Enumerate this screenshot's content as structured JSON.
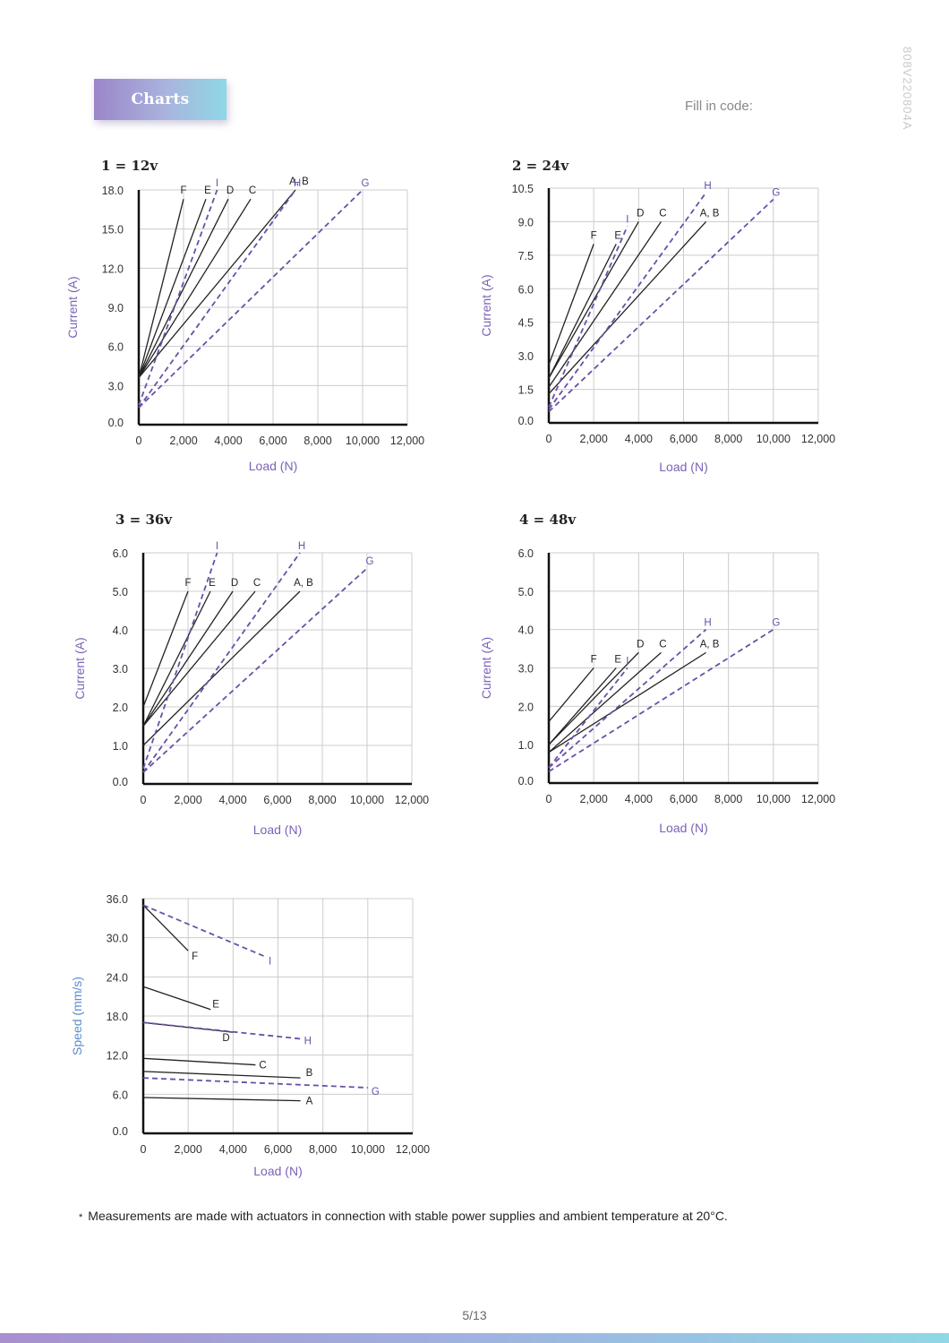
{
  "header": {
    "badge_label": "Charts",
    "fill_in_code_label": "Fill in code:",
    "document_code": "808V220804A"
  },
  "footer": {
    "footnote": "Measurements are made with actuators in connection with stable power supplies and ambient temperature at 20°C.",
    "footnote_marker": "*",
    "page_number": "5/13"
  },
  "colors": {
    "solid_line": "#222222",
    "dashed_line": "#6b4fa8",
    "axis_label": "#7b62b8",
    "speed_axis_label": "#5b8bd0",
    "grid": "#cccccc"
  },
  "chart_data": [
    {
      "type": "line",
      "title": "1 = 12v",
      "xlabel": "Load (N)",
      "ylabel": "Current (A)",
      "xlim": [
        0,
        12000
      ],
      "ylim": [
        0,
        18
      ],
      "x_ticks": [
        "0",
        "2,000",
        "4,000",
        "6,000",
        "8,000",
        "10,000",
        "12,000"
      ],
      "y_ticks": [
        "0.0",
        "3.0",
        "6.0",
        "9.0",
        "12.0",
        "15.0",
        "18.0"
      ],
      "series": [
        {
          "name": "F",
          "style": "solid",
          "x": [
            0,
            2000
          ],
          "y": [
            3.6,
            17.3
          ]
        },
        {
          "name": "E",
          "style": "solid",
          "x": [
            0,
            3000
          ],
          "y": [
            3.6,
            17.3
          ]
        },
        {
          "name": "D",
          "style": "solid",
          "x": [
            0,
            4000
          ],
          "y": [
            3.6,
            17.3
          ]
        },
        {
          "name": "C",
          "style": "solid",
          "x": [
            0,
            5000
          ],
          "y": [
            3.6,
            17.3
          ]
        },
        {
          "name": "A, B",
          "style": "solid",
          "x": [
            0,
            7000
          ],
          "y": [
            3.6,
            18
          ]
        },
        {
          "name": "I",
          "style": "dashed",
          "x": [
            0,
            3500
          ],
          "y": [
            1.5,
            18
          ]
        },
        {
          "name": "H",
          "style": "dashed",
          "x": [
            0,
            7000
          ],
          "y": [
            1.3,
            18
          ]
        },
        {
          "name": "G",
          "style": "dashed",
          "x": [
            0,
            10000
          ],
          "y": [
            1.3,
            18
          ]
        }
      ]
    },
    {
      "type": "line",
      "title": "2 = 24v",
      "xlabel": "Load (N)",
      "ylabel": "Current (A)",
      "xlim": [
        0,
        12000
      ],
      "ylim": [
        0,
        10.5
      ],
      "x_ticks": [
        "0",
        "2,000",
        "4,000",
        "6,000",
        "8,000",
        "10,000",
        "12,000"
      ],
      "y_ticks": [
        "0.0",
        "1.5",
        "3.0",
        "4.5",
        "6.0",
        "7.5",
        "9.0",
        "10.5"
      ],
      "series": [
        {
          "name": "F",
          "style": "solid",
          "x": [
            0,
            2000
          ],
          "y": [
            2.6,
            8
          ]
        },
        {
          "name": "E",
          "style": "solid",
          "x": [
            0,
            3000
          ],
          "y": [
            2.0,
            8
          ]
        },
        {
          "name": "D",
          "style": "solid",
          "x": [
            0,
            4000
          ],
          "y": [
            2.0,
            9
          ]
        },
        {
          "name": "C",
          "style": "solid",
          "x": [
            0,
            5000
          ],
          "y": [
            1.6,
            9
          ]
        },
        {
          "name": "A, B",
          "style": "solid",
          "x": [
            0,
            7000
          ],
          "y": [
            1.3,
            9
          ]
        },
        {
          "name": "I",
          "style": "dashed",
          "x": [
            0,
            3500
          ],
          "y": [
            0.7,
            8.8
          ]
        },
        {
          "name": "H",
          "style": "dashed",
          "x": [
            0,
            7000
          ],
          "y": [
            0.6,
            10.3
          ]
        },
        {
          "name": "G",
          "style": "dashed",
          "x": [
            0,
            10000
          ],
          "y": [
            0.5,
            10
          ]
        }
      ]
    },
    {
      "type": "line",
      "title": "3 = 36v",
      "xlabel": "Load (N)",
      "ylabel": "Current (A)",
      "xlim": [
        0,
        12000
      ],
      "ylim": [
        0,
        6
      ],
      "x_ticks": [
        "0",
        "2,000",
        "4,000",
        "6,000",
        "8,000",
        "10,000",
        "12,000"
      ],
      "y_ticks": [
        "0.0",
        "1.0",
        "2.0",
        "3.0",
        "4.0",
        "5.0",
        "6.0"
      ],
      "series": [
        {
          "name": "F",
          "style": "solid",
          "x": [
            0,
            2000
          ],
          "y": [
            2.0,
            5.0
          ]
        },
        {
          "name": "E",
          "style": "solid",
          "x": [
            0,
            3000
          ],
          "y": [
            1.5,
            5.0
          ]
        },
        {
          "name": "D",
          "style": "solid",
          "x": [
            0,
            4000
          ],
          "y": [
            1.5,
            5.0
          ]
        },
        {
          "name": "C",
          "style": "solid",
          "x": [
            0,
            5000
          ],
          "y": [
            1.5,
            5.0
          ]
        },
        {
          "name": "A, B",
          "style": "solid",
          "x": [
            0,
            7000
          ],
          "y": [
            1.0,
            5.0
          ]
        },
        {
          "name": "I",
          "style": "dashed",
          "x": [
            0,
            3300
          ],
          "y": [
            0.4,
            6.0
          ]
        },
        {
          "name": "H",
          "style": "dashed",
          "x": [
            0,
            7000
          ],
          "y": [
            0.3,
            6.0
          ]
        },
        {
          "name": "G",
          "style": "dashed",
          "x": [
            0,
            10000
          ],
          "y": [
            0.3,
            5.6
          ]
        }
      ]
    },
    {
      "type": "line",
      "title": "4 = 48v",
      "xlabel": "Load (N)",
      "ylabel": "Current (A)",
      "xlim": [
        0,
        12000
      ],
      "ylim": [
        0,
        6
      ],
      "x_ticks": [
        "0",
        "2,000",
        "4,000",
        "6,000",
        "8,000",
        "10,000",
        "12,000"
      ],
      "y_ticks": [
        "0.0",
        "1.0",
        "2.0",
        "3.0",
        "4.0",
        "5.0",
        "6.0"
      ],
      "series": [
        {
          "name": "F",
          "style": "solid",
          "x": [
            0,
            2000
          ],
          "y": [
            1.6,
            3.0
          ]
        },
        {
          "name": "E",
          "style": "solid",
          "x": [
            0,
            3000
          ],
          "y": [
            1.0,
            3.0
          ]
        },
        {
          "name": "D",
          "style": "solid",
          "x": [
            0,
            4000
          ],
          "y": [
            1.0,
            3.4
          ]
        },
        {
          "name": "C",
          "style": "solid",
          "x": [
            0,
            5000
          ],
          "y": [
            0.8,
            3.4
          ]
        },
        {
          "name": "A, B",
          "style": "solid",
          "x": [
            0,
            7000
          ],
          "y": [
            0.8,
            3.4
          ]
        },
        {
          "name": "I",
          "style": "dashed",
          "x": [
            0,
            3500
          ],
          "y": [
            0.4,
            3.0
          ]
        },
        {
          "name": "H",
          "style": "dashed",
          "x": [
            0,
            7000
          ],
          "y": [
            0.4,
            4.0
          ]
        },
        {
          "name": "G",
          "style": "dashed",
          "x": [
            0,
            10000
          ],
          "y": [
            0.3,
            4.0
          ]
        }
      ]
    },
    {
      "type": "line",
      "title": "",
      "xlabel": "Load (N)",
      "ylabel": "Speed (mm/s)",
      "xlim": [
        0,
        12000
      ],
      "ylim": [
        0,
        36
      ],
      "x_ticks": [
        "0",
        "2,000",
        "4,000",
        "6,000",
        "8,000",
        "10,000",
        "12,000"
      ],
      "y_ticks": [
        "0.0",
        "6.0",
        "12.0",
        "18.0",
        "24.0",
        "30.0",
        "36.0"
      ],
      "series": [
        {
          "name": "F",
          "style": "solid",
          "x": [
            0,
            2000
          ],
          "y": [
            35,
            28
          ]
        },
        {
          "name": "E",
          "style": "solid",
          "x": [
            0,
            3000
          ],
          "y": [
            22.5,
            19
          ]
        },
        {
          "name": "D",
          "style": "solid",
          "x": [
            0,
            4000
          ],
          "y": [
            17,
            15.5
          ]
        },
        {
          "name": "C",
          "style": "solid",
          "x": [
            0,
            5000
          ],
          "y": [
            11.5,
            10.5
          ]
        },
        {
          "name": "B",
          "style": "solid",
          "x": [
            0,
            7000
          ],
          "y": [
            9.5,
            8.5
          ]
        },
        {
          "name": "A",
          "style": "solid",
          "x": [
            0,
            7000
          ],
          "y": [
            5.5,
            5.0
          ]
        },
        {
          "name": "I",
          "style": "dashed",
          "x": [
            0,
            5500
          ],
          "y": [
            35,
            27
          ]
        },
        {
          "name": "H",
          "style": "dashed",
          "x": [
            0,
            7000
          ],
          "y": [
            17.0,
            14.5
          ]
        },
        {
          "name": "G",
          "style": "dashed",
          "x": [
            0,
            10000
          ],
          "y": [
            8.5,
            7.0
          ]
        }
      ]
    }
  ]
}
